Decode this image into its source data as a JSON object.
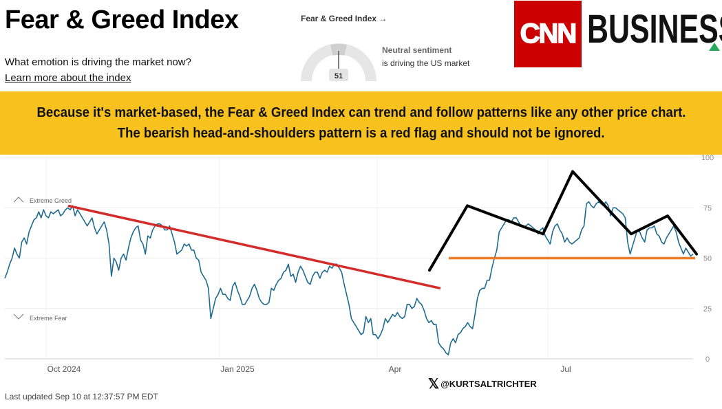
{
  "header": {
    "title": "Fear & Greed Index",
    "question": "What emotion is driving the market now?",
    "learn_more": "Learn more about the index"
  },
  "mini_widget": {
    "link": "Fear & Greed Index →",
    "value": "51",
    "sentiment_title": "Neutral sentiment",
    "sentiment_sub": "is driving the US market"
  },
  "logo": {
    "cnn": "CNN",
    "business": "BUSINESS"
  },
  "banner": {
    "line1": "Because it's market-based, the Fear & Greed Index can trend and follow patterns like any other price chart.",
    "line2": "The bearish head-and-shoulders pattern is a red flag and should not be ignored."
  },
  "footer": {
    "last_updated": "Last updated Sep 10 at 12:37:57 PM EDT",
    "credit": "@KURTSALTRICHTER",
    "credit_icon": "x-logo-icon"
  },
  "colors": {
    "banner": "#f7c21d",
    "series": "#1e6b8f",
    "trendline": "#d42b2b",
    "neckline": "#f07c2a",
    "pattern": "#000000",
    "cnn_red": "#cc0000"
  },
  "chart_data": {
    "type": "line",
    "x_labels": [
      "Oct 2024",
      "Jan 2025",
      "Apr",
      "Jul"
    ],
    "y_ticks": [
      0,
      25,
      50,
      75,
      100
    ],
    "ylim": [
      0,
      100
    ],
    "zone_labels": {
      "greed": "Extreme Greed",
      "fear": "Extreme Fear"
    },
    "series": [
      {
        "values": [
          40,
          43,
          47,
          50,
          55,
          52,
          50,
          58,
          60,
          57,
          63,
          66,
          69,
          70,
          73,
          70,
          74,
          71,
          70,
          73,
          72,
          73,
          74,
          71,
          72,
          74,
          75,
          74,
          76,
          71,
          74,
          72,
          70,
          68,
          66,
          68,
          70,
          65,
          62,
          64,
          66,
          68,
          64,
          57,
          41,
          50,
          48,
          44,
          50,
          52,
          49,
          55,
          60,
          63,
          65,
          66,
          59,
          57,
          52,
          61,
          60,
          64,
          66,
          67,
          67,
          66,
          64,
          64,
          66,
          62,
          58,
          52,
          53,
          54,
          57,
          56,
          57,
          54,
          54,
          50,
          49,
          43,
          41,
          39,
          35,
          20,
          25,
          30,
          32,
          35,
          32,
          32,
          30,
          29,
          36,
          38,
          34,
          31,
          27,
          27,
          29,
          31,
          35,
          37,
          34,
          30,
          28,
          27,
          27,
          28,
          35,
          34,
          37,
          39,
          40,
          43,
          44,
          47,
          41,
          42,
          38,
          43,
          46,
          44,
          41,
          38,
          37,
          41,
          43,
          43,
          40,
          43,
          44,
          43,
          46,
          45,
          47,
          47,
          45,
          43,
          37,
          32,
          27,
          20,
          18,
          16,
          14,
          12,
          13,
          21,
          18,
          20,
          12,
          12,
          10,
          12,
          15,
          20,
          18,
          20,
          22,
          21,
          23,
          21,
          20,
          21,
          27,
          27,
          25,
          26,
          30,
          28,
          27,
          24,
          20,
          18,
          19,
          17,
          17,
          8,
          6,
          5,
          3,
          2,
          8,
          10,
          8,
          12,
          13,
          15,
          16,
          18,
          16,
          15,
          22,
          30,
          34,
          35,
          35,
          39,
          39,
          45,
          50,
          54,
          63,
          65,
          67,
          69,
          69,
          68,
          70,
          70,
          68,
          66,
          65,
          66,
          67,
          66,
          65,
          64,
          62,
          64,
          65,
          61,
          59,
          57,
          63,
          66,
          67,
          64,
          62,
          58,
          60,
          58,
          57,
          58,
          59,
          60,
          64,
          66,
          77,
          78,
          76,
          75,
          77,
          78,
          77,
          76,
          78,
          76,
          71,
          75,
          75,
          74,
          73,
          72,
          70,
          58,
          52,
          56,
          60,
          64,
          63,
          60,
          58,
          64,
          65,
          65,
          66,
          62,
          61,
          58,
          57,
          60,
          62,
          64,
          66,
          63,
          58,
          55,
          52,
          55,
          53,
          51,
          52
        ]
      }
    ],
    "annotations": {
      "trendline": {
        "from": {
          "date": "Oct 2024",
          "value": 76
        },
        "to": {
          "date": "Apr",
          "value": 35
        }
      },
      "neckline": {
        "value": 50
      },
      "head_and_shoulders": [
        {
          "date": "Apr",
          "value": 44
        },
        {
          "date": "May",
          "value": 76
        },
        {
          "date": "Jun",
          "value": 62
        },
        {
          "date": "Jul",
          "value": 93
        },
        {
          "date": "Aug",
          "value": 62
        },
        {
          "date": "Aug",
          "value": 71
        },
        {
          "date": "Sep",
          "value": 52
        }
      ]
    }
  }
}
